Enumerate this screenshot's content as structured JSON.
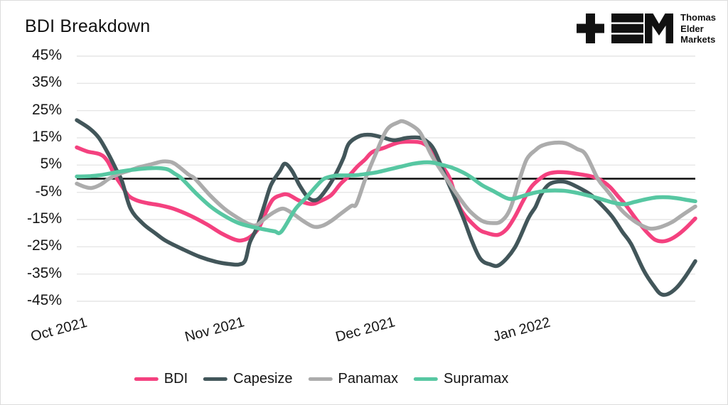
{
  "header": {
    "title": "BDI Breakdown"
  },
  "logo": {
    "name": "Thomas Elder Markets",
    "lines": [
      "Thomas",
      "Elder",
      "Markets"
    ],
    "color": "#111111"
  },
  "chart_data": {
    "type": "line",
    "title": "BDI Breakdown",
    "x_axis": {
      "tick_labels": [
        "Oct 2021",
        "Nov 2021",
        "Dec 2021",
        "Jan 2022"
      ],
      "tick_days": [
        0,
        31,
        61,
        92
      ],
      "domain_days": [
        0,
        123
      ],
      "label_rotation_deg": -15
    },
    "y_axis": {
      "unit": "%",
      "range": [
        -45,
        45
      ],
      "ticks": [
        45,
        35,
        25,
        15,
        5,
        -5,
        -15,
        -25,
        -35,
        -45
      ],
      "tick_labels": [
        "45%",
        "35%",
        "25%",
        "15%",
        "5%",
        "-5%",
        "-15%",
        "-25%",
        "-35%",
        "-45%"
      ],
      "zero_line": true
    },
    "grid": {
      "horizontal": true,
      "color": "#E6E6E6",
      "zero_line_color": "#0B0B0B"
    },
    "legend": {
      "position": "bottom",
      "entries": [
        "BDI",
        "Capesize",
        "Panamax",
        "Supramax"
      ]
    },
    "series": [
      {
        "name": "BDI",
        "color": "#F4417F",
        "points": [
          [
            0,
            11.5
          ],
          [
            2.1,
            10
          ],
          [
            4.7,
            8.9
          ],
          [
            6.1,
            6.5
          ],
          [
            7.5,
            1.5
          ],
          [
            8.9,
            -2.5
          ],
          [
            10.3,
            -6.3
          ],
          [
            12,
            -8
          ],
          [
            14.1,
            -9
          ],
          [
            16.4,
            -9.7
          ],
          [
            19.2,
            -11
          ],
          [
            22.6,
            -13.6
          ],
          [
            25.9,
            -16.8
          ],
          [
            28.7,
            -20
          ],
          [
            31.5,
            -22.4
          ],
          [
            33,
            -22.6
          ],
          [
            34.6,
            -21.2
          ],
          [
            36.2,
            -18.1
          ],
          [
            37.6,
            -12.3
          ],
          [
            39,
            -7.6
          ],
          [
            40.7,
            -6
          ],
          [
            42.1,
            -5.9
          ],
          [
            44.3,
            -8.1
          ],
          [
            46.7,
            -9.3
          ],
          [
            48.5,
            -8.2
          ],
          [
            50.6,
            -6
          ],
          [
            52.4,
            -2
          ],
          [
            54.1,
            1
          ],
          [
            55.8,
            4.5
          ],
          [
            57.3,
            7
          ],
          [
            58.8,
            9.8
          ],
          [
            61.2,
            11.4
          ],
          [
            63.8,
            13.2
          ],
          [
            66.2,
            13.6
          ],
          [
            68.7,
            13.1
          ],
          [
            70.4,
            10.5
          ],
          [
            72.5,
            5
          ],
          [
            74.2,
            0
          ],
          [
            76.3,
            -11
          ],
          [
            79.6,
            -18.1
          ],
          [
            81.7,
            -20
          ],
          [
            83.8,
            -20.6
          ],
          [
            85.5,
            -18.5
          ],
          [
            87.1,
            -14
          ],
          [
            88.8,
            -8
          ],
          [
            90.4,
            -3
          ],
          [
            92.1,
            0
          ],
          [
            93.7,
            1.8
          ],
          [
            95.6,
            2.4
          ],
          [
            97.5,
            2.3
          ],
          [
            99.4,
            1.8
          ],
          [
            102.2,
            0.9
          ],
          [
            104,
            -0.3
          ],
          [
            106,
            -3
          ],
          [
            107.8,
            -6.8
          ],
          [
            109.3,
            -10
          ],
          [
            111.3,
            -15
          ],
          [
            113.3,
            -19.5
          ],
          [
            114.9,
            -22.3
          ],
          [
            116.4,
            -23
          ],
          [
            118,
            -22.3
          ],
          [
            119.6,
            -20.5
          ],
          [
            121.3,
            -17.8
          ],
          [
            123,
            -14.6
          ]
        ]
      },
      {
        "name": "Capesize",
        "color": "#42565A",
        "points": [
          [
            0,
            21.5
          ],
          [
            2.5,
            18.5
          ],
          [
            4.4,
            15
          ],
          [
            6.3,
            9
          ],
          [
            7.8,
            3.5
          ],
          [
            9,
            -1
          ],
          [
            10.7,
            -11
          ],
          [
            13.1,
            -16.4
          ],
          [
            15.6,
            -20
          ],
          [
            17.8,
            -22.9
          ],
          [
            21.2,
            -26
          ],
          [
            24.5,
            -28.7
          ],
          [
            27.7,
            -30.5
          ],
          [
            30.2,
            -31.3
          ],
          [
            32.2,
            -31.5
          ],
          [
            33.5,
            -30
          ],
          [
            34.4,
            -23.5
          ],
          [
            35.8,
            -18.1
          ],
          [
            37.2,
            -10.4
          ],
          [
            38.6,
            -2.4
          ],
          [
            40.4,
            2.9
          ],
          [
            41.4,
            5.5
          ],
          [
            42.8,
            2.9
          ],
          [
            44.3,
            -2.4
          ],
          [
            46.1,
            -7.1
          ],
          [
            47.8,
            -7.7
          ],
          [
            49.6,
            -4
          ],
          [
            51.3,
            1
          ],
          [
            53,
            7.5
          ],
          [
            54.1,
            12.9
          ],
          [
            56.3,
            15.7
          ],
          [
            58.4,
            16.1
          ],
          [
            60.9,
            15.1
          ],
          [
            63.1,
            14.1
          ],
          [
            65.7,
            15
          ],
          [
            68,
            15.1
          ],
          [
            69.4,
            14
          ],
          [
            71.1,
            10.5
          ],
          [
            73.5,
            0
          ],
          [
            75.3,
            -7.5
          ],
          [
            77,
            -15
          ],
          [
            78.6,
            -23
          ],
          [
            80.3,
            -29.5
          ],
          [
            82.1,
            -31.4
          ],
          [
            84.1,
            -31.6
          ],
          [
            87.1,
            -25.3
          ],
          [
            89.8,
            -14.5
          ],
          [
            91.2,
            -10.4
          ],
          [
            92.3,
            -5.9
          ],
          [
            93.7,
            -2.4
          ],
          [
            95.2,
            -1.2
          ],
          [
            97.2,
            -1.2
          ],
          [
            99.4,
            -2.9
          ],
          [
            102.2,
            -5.9
          ],
          [
            104.3,
            -9.5
          ],
          [
            106.5,
            -14
          ],
          [
            108.5,
            -19.5
          ],
          [
            110.3,
            -24.2
          ],
          [
            112.8,
            -33.9
          ],
          [
            114.8,
            -39.5
          ],
          [
            116.1,
            -42.3
          ],
          [
            117.5,
            -42.4
          ],
          [
            119.3,
            -40
          ],
          [
            121,
            -36
          ],
          [
            123,
            -30.3
          ]
        ]
      },
      {
        "name": "Panamax",
        "color": "#ACACAC",
        "points": [
          [
            0,
            -1.8
          ],
          [
            1.6,
            -3
          ],
          [
            3,
            -3.4
          ],
          [
            4.7,
            -2.2
          ],
          [
            6.4,
            0
          ],
          [
            8.2,
            1.6
          ],
          [
            10.3,
            2.9
          ],
          [
            12.4,
            4.2
          ],
          [
            14.6,
            5.2
          ],
          [
            16.7,
            6.2
          ],
          [
            18.1,
            6.3
          ],
          [
            19.5,
            5.5
          ],
          [
            22.3,
            1.4
          ],
          [
            23.5,
            0
          ],
          [
            26.6,
            -6.3
          ],
          [
            29.4,
            -11.1
          ],
          [
            32.2,
            -14.6
          ],
          [
            34.4,
            -16.8
          ],
          [
            35.8,
            -17
          ],
          [
            37.5,
            -14.5
          ],
          [
            39.3,
            -12.2
          ],
          [
            41.1,
            -11
          ],
          [
            43.1,
            -13
          ],
          [
            45,
            -15.5
          ],
          [
            47.1,
            -17.6
          ],
          [
            48.8,
            -17.3
          ],
          [
            50.6,
            -15.5
          ],
          [
            52.4,
            -13
          ],
          [
            54.6,
            -10
          ],
          [
            55.6,
            -9.3
          ],
          [
            57.4,
            0
          ],
          [
            59.4,
            8.9
          ],
          [
            61.6,
            17.8
          ],
          [
            63.8,
            20.6
          ],
          [
            65.2,
            20.9
          ],
          [
            67.9,
            17.8
          ],
          [
            69.3,
            13.3
          ],
          [
            70.7,
            8.1
          ],
          [
            73.5,
            0
          ],
          [
            76.3,
            -7.6
          ],
          [
            78.2,
            -12
          ],
          [
            80.6,
            -15.5
          ],
          [
            82.8,
            -16.3
          ],
          [
            84.5,
            -15.5
          ],
          [
            86.2,
            -11
          ],
          [
            88.1,
            0
          ],
          [
            89.5,
            7.2
          ],
          [
            91.2,
            10.5
          ],
          [
            92.6,
            12.2
          ],
          [
            95,
            13.2
          ],
          [
            97.2,
            13
          ],
          [
            99.4,
            11
          ],
          [
            101.2,
            8.9
          ],
          [
            103.6,
            0
          ],
          [
            105.3,
            -4
          ],
          [
            106.5,
            -6.8
          ],
          [
            107.8,
            -10.4
          ],
          [
            109.5,
            -13.6
          ],
          [
            111.5,
            -16.3
          ],
          [
            113.5,
            -18.1
          ],
          [
            114.8,
            -18.3
          ],
          [
            116.5,
            -17.5
          ],
          [
            118.5,
            -15.8
          ],
          [
            120.3,
            -13.5
          ],
          [
            123,
            -10.2
          ]
        ]
      },
      {
        "name": "Supramax",
        "color": "#57C7A2",
        "points": [
          [
            0,
            0.8
          ],
          [
            2.5,
            0.9
          ],
          [
            4.7,
            1.3
          ],
          [
            7.1,
            2.1
          ],
          [
            9.2,
            2.8
          ],
          [
            11.7,
            3.4
          ],
          [
            14.1,
            3.8
          ],
          [
            16.3,
            3.9
          ],
          [
            18.1,
            3.4
          ],
          [
            19.5,
            1.8
          ],
          [
            20.9,
            0
          ],
          [
            23.8,
            -5.5
          ],
          [
            26.6,
            -10.2
          ],
          [
            29.4,
            -13.7
          ],
          [
            32.2,
            -16.3
          ],
          [
            35.1,
            -17.8
          ],
          [
            37.2,
            -18.6
          ],
          [
            39.3,
            -19.3
          ],
          [
            40.7,
            -19.4
          ],
          [
            43.5,
            -11.1
          ],
          [
            45.7,
            -6.8
          ],
          [
            47.8,
            -2.4
          ],
          [
            49.2,
            0
          ],
          [
            51.3,
            1.1
          ],
          [
            53.2,
            1.2
          ],
          [
            55.6,
            1.3
          ],
          [
            57.7,
            1.8
          ],
          [
            59.8,
            2.4
          ],
          [
            62.3,
            3.5
          ],
          [
            64.8,
            4.6
          ],
          [
            66.9,
            5.5
          ],
          [
            69,
            6
          ],
          [
            70.8,
            5.9
          ],
          [
            72.8,
            5
          ],
          [
            74.7,
            4
          ],
          [
            76.8,
            2.3
          ],
          [
            78.6,
            0.3
          ],
          [
            80.7,
            -2.5
          ],
          [
            83.1,
            -4.8
          ],
          [
            85.3,
            -7
          ],
          [
            86.7,
            -7.4
          ],
          [
            88.8,
            -6.3
          ],
          [
            90.9,
            -5.2
          ],
          [
            93,
            -4.5
          ],
          [
            95.1,
            -4.3
          ],
          [
            97.3,
            -4.5
          ],
          [
            99.7,
            -5.3
          ],
          [
            101.9,
            -6.3
          ],
          [
            104.3,
            -7.5
          ],
          [
            106.7,
            -8.8
          ],
          [
            108.9,
            -9.4
          ],
          [
            111,
            -8.5
          ],
          [
            113.1,
            -7.6
          ],
          [
            115.2,
            -6.9
          ],
          [
            117.4,
            -6.8
          ],
          [
            119.5,
            -7.2
          ],
          [
            121.3,
            -7.8
          ],
          [
            123,
            -8.3
          ]
        ]
      }
    ]
  }
}
